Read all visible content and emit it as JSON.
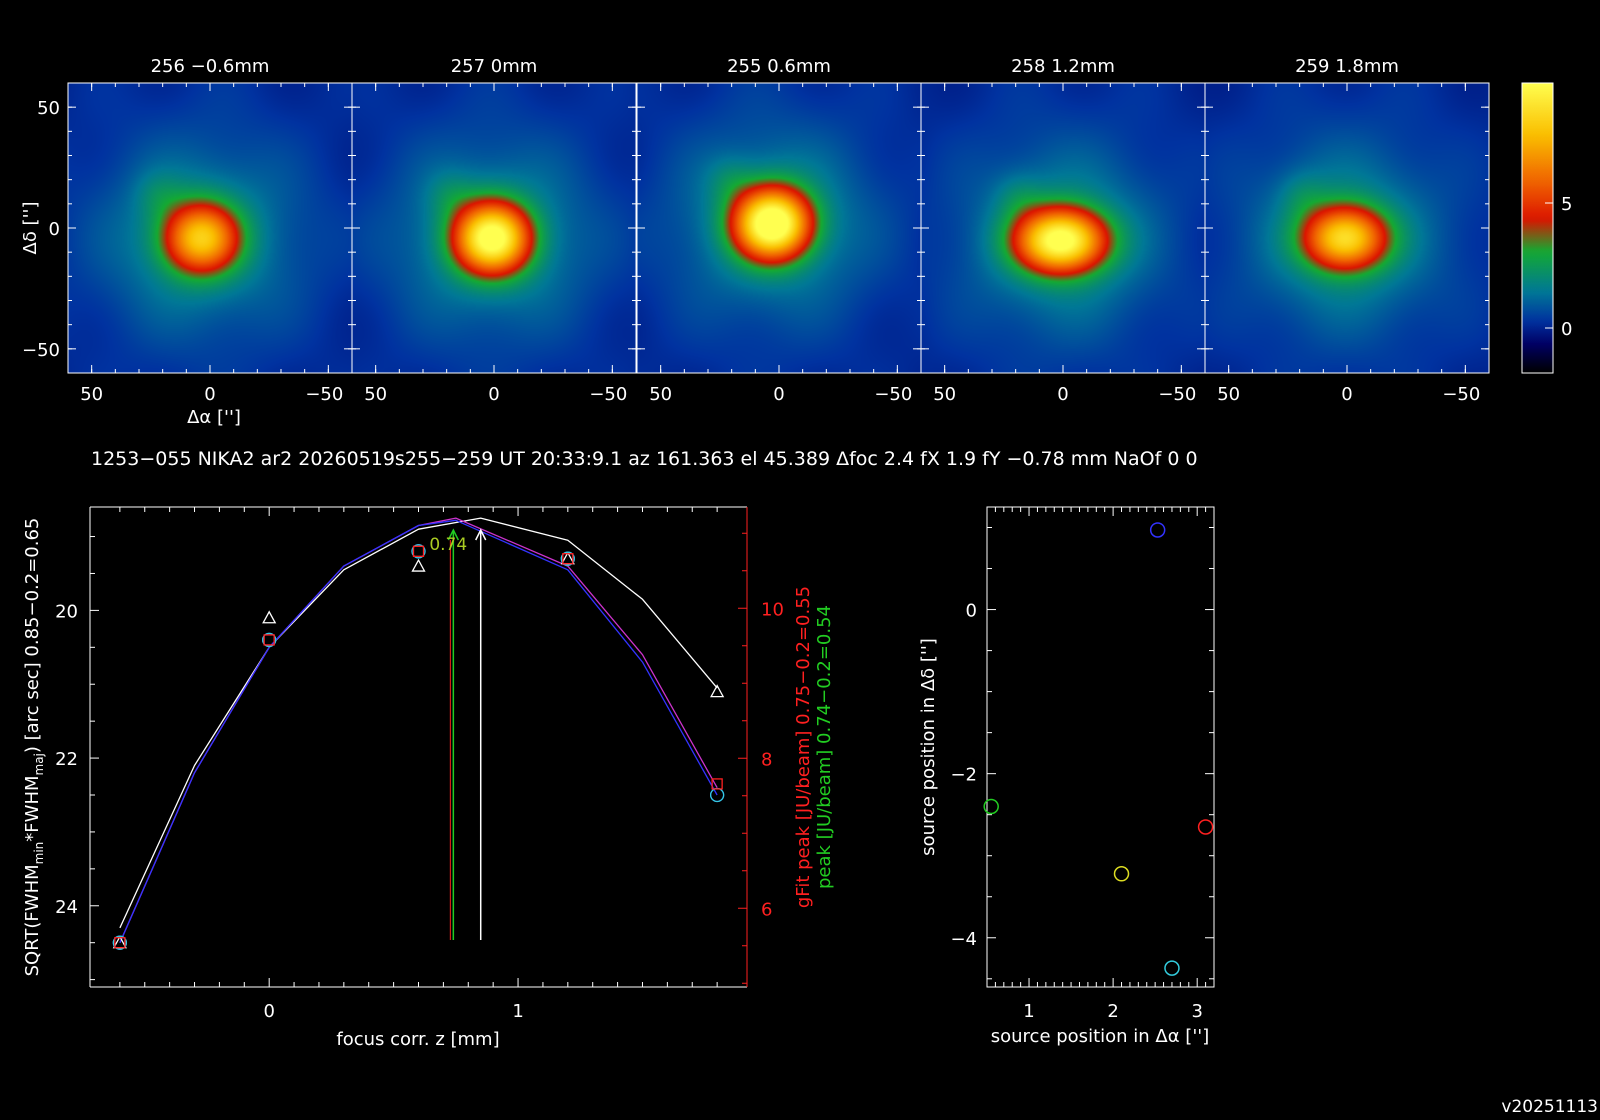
{
  "info_line": "1253−055 NIKA2 ar2 20260519s255−259 UT 20:33:9.1 az 161.363 el 45.389 Δfoc 2.4 fX 1.9 fY −0.78 mm NaOf 0 0",
  "version": "v20251113",
  "colors": {
    "white": "#ffffff",
    "red": "#ff2020",
    "green": "#22cc22",
    "blue": "#3333ff",
    "cyan": "#33ccdd",
    "yellow": "#dddd22",
    "magenta": "#cc33cc"
  },
  "chart_data": [
    {
      "type": "heatmap",
      "panels": [
        {
          "title": "256 −0.6mm",
          "peak": 6.3,
          "x0": 4,
          "y0": -4,
          "sx": 11,
          "sy": 10
        },
        {
          "title": "257 0mm",
          "peak": 8.6,
          "x0": 1,
          "y0": -4,
          "sx": 11,
          "sy": 10
        },
        {
          "title": "255 0.6mm",
          "peak": 9.4,
          "x0": 3,
          "y0": 2,
          "sx": 11,
          "sy": 10
        },
        {
          "title": "258 1.2mm",
          "peak": 8.6,
          "x0": 1,
          "y0": -5,
          "sx": 13,
          "sy": 9
        },
        {
          "title": "259 1.8mm",
          "peak": 6.9,
          "x0": 1,
          "y0": -4,
          "sx": 12,
          "sy": 9
        }
      ],
      "xlabel": "Δα ['']",
      "ylabel": "Δδ ['']",
      "xlim": [
        60,
        -60
      ],
      "ylim": [
        -60,
        60
      ],
      "xticks": [
        "50",
        "0",
        "−50"
      ],
      "yticks": [
        "50",
        "0",
        "−50"
      ],
      "colorbar": {
        "range": [
          -1.8,
          9.8
        ],
        "ticks": [
          "5",
          "0"
        ]
      }
    },
    {
      "type": "line",
      "xlabel": "focus corr. z [mm]",
      "ylabel": "SQRT(FWHM_min*FWHM_maj) [arc sec] 0.85−0.2=0.65",
      "ylabel_parts": {
        "pre": "SQRT(FWHM",
        "sub1": "min",
        "mid": "*FWHM",
        "sub2": "maj",
        "post": ") [arc sec] 0.85−0.2=0.65"
      },
      "y2label_red": "gFit peak [JU/beam] 0.75−0.2=0.55",
      "y2label_green": "peak [JU/beam] 0.74−0.2=0.54",
      "xlim": [
        -0.72,
        1.92
      ],
      "ylim": [
        25.1,
        18.6
      ],
      "y2lim": [
        4.95,
        11.35
      ],
      "xticks": [
        "0",
        "1"
      ],
      "yticks": [
        "20",
        "22",
        "24"
      ],
      "y2ticks": [
        "6",
        "8",
        "10"
      ],
      "focus_label": "0.74",
      "focus_green": 0.74,
      "focus_white": 0.85,
      "series": [
        {
          "color": "white",
          "marker": "triangle",
          "x": [
            -0.6,
            0,
            0.6,
            1.2,
            1.8
          ],
          "y": [
            24.5,
            20.1,
            19.4,
            19.3,
            21.1
          ]
        },
        {
          "color": "blue",
          "marker": "circle",
          "x": [
            -0.6,
            0,
            0.6,
            1.2,
            1.8
          ],
          "y": [
            24.5,
            20.4,
            19.2,
            19.3,
            22.5
          ]
        },
        {
          "color": "cyan",
          "marker": "circle",
          "x": [
            -0.6,
            0,
            0.6,
            1.2,
            1.8
          ],
          "y": [
            24.5,
            20.4,
            19.2,
            19.3,
            22.5
          ]
        },
        {
          "color": "red",
          "marker": "square",
          "x": [
            -0.6,
            0,
            0.6,
            1.2,
            1.8
          ],
          "y": [
            24.5,
            20.4,
            19.2,
            19.3,
            22.35
          ]
        }
      ],
      "fits": [
        {
          "color": "white",
          "x": [
            -0.6,
            -0.3,
            0,
            0.3,
            0.6,
            0.85,
            1.2,
            1.5,
            1.8
          ],
          "y": [
            24.3,
            22.1,
            20.5,
            19.45,
            18.9,
            18.75,
            19.05,
            19.85,
            21.05
          ]
        },
        {
          "color": "magenta",
          "x": [
            -0.6,
            -0.3,
            0,
            0.3,
            0.6,
            0.75,
            1.2,
            1.5,
            1.8
          ],
          "y": [
            24.5,
            22.2,
            20.5,
            19.4,
            18.85,
            18.75,
            19.4,
            20.6,
            22.4
          ]
        },
        {
          "color": "blue",
          "x": [
            -0.6,
            -0.3,
            0,
            0.3,
            0.6,
            0.75,
            1.2,
            1.5,
            1.8
          ],
          "y": [
            24.5,
            22.2,
            20.5,
            19.4,
            18.85,
            18.78,
            19.45,
            20.7,
            22.5
          ]
        }
      ]
    },
    {
      "type": "scatter",
      "xlabel": "source position in Δα ['']",
      "ylabel": "source position in Δδ ['']",
      "xlim": [
        0.5,
        3.2
      ],
      "ylim": [
        -4.6,
        1.25
      ],
      "xticks": [
        "1",
        "2",
        "3"
      ],
      "yticks": [
        "0",
        "−2",
        "−4"
      ],
      "points": [
        {
          "color": "blue",
          "x": 2.53,
          "y": 0.97
        },
        {
          "color": "green",
          "x": 0.55,
          "y": -2.4
        },
        {
          "color": "yellow",
          "x": 2.1,
          "y": -3.22
        },
        {
          "color": "red",
          "x": 3.1,
          "y": -2.65
        },
        {
          "color": "cyan",
          "x": 2.7,
          "y": -4.37
        }
      ]
    }
  ]
}
